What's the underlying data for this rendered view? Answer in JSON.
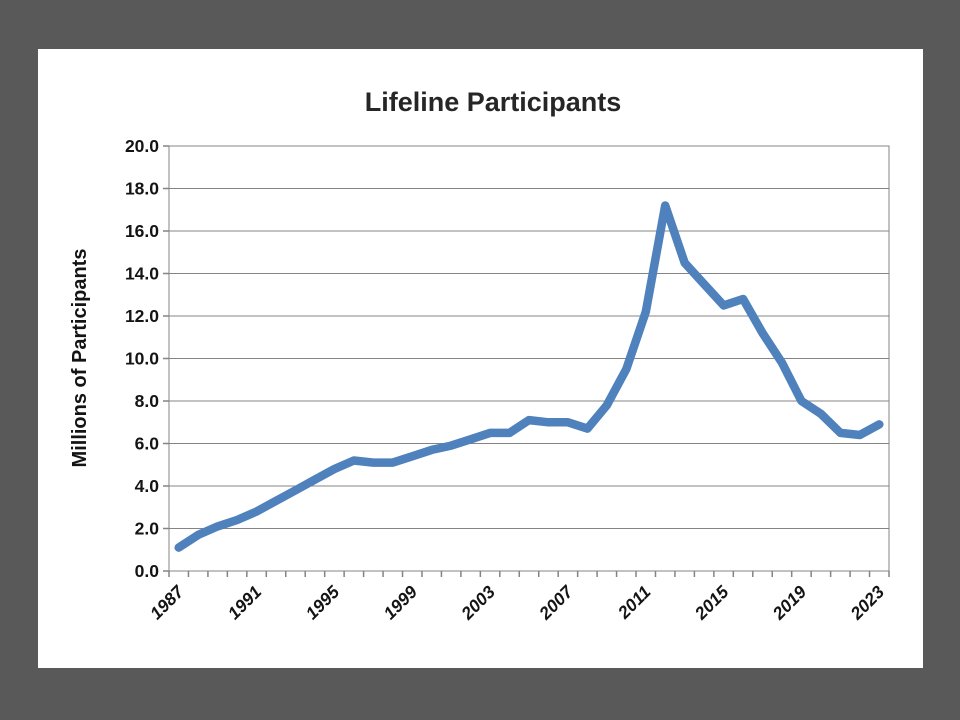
{
  "slide": {
    "background_color": "#595959",
    "panel_color": "#ffffff"
  },
  "chart_data": {
    "type": "line",
    "title": "Lifeline Participants",
    "xlabel": "",
    "ylabel": "Millions of Participants",
    "x": [
      1987,
      1988,
      1989,
      1990,
      1991,
      1992,
      1993,
      1994,
      1995,
      1996,
      1997,
      1998,
      1999,
      2000,
      2001,
      2002,
      2003,
      2004,
      2005,
      2006,
      2007,
      2008,
      2009,
      2010,
      2011,
      2012,
      2013,
      2014,
      2015,
      2016,
      2017,
      2018,
      2019,
      2020,
      2021,
      2022,
      2023
    ],
    "series": [
      {
        "name": "Lifeline Participants",
        "values": [
          1.1,
          1.7,
          2.1,
          2.4,
          2.8,
          3.3,
          3.8,
          4.3,
          4.8,
          5.2,
          5.1,
          5.1,
          5.4,
          5.7,
          5.9,
          6.2,
          6.5,
          6.5,
          7.1,
          7.0,
          7.0,
          6.7,
          7.8,
          9.5,
          12.2,
          17.2,
          14.5,
          13.5,
          12.5,
          12.8,
          11.2,
          9.8,
          8.0,
          7.4,
          6.5,
          6.4,
          6.9
        ]
      }
    ],
    "ylim": [
      0.0,
      20.0
    ],
    "ytick_interval": 2.0,
    "ytick_labels": [
      "0.0",
      "2.0",
      "4.0",
      "6.0",
      "8.0",
      "10.0",
      "12.0",
      "14.0",
      "16.0",
      "18.0",
      "20.0"
    ],
    "xtick_label_interval": 4,
    "xtick_labels": [
      "1987",
      "1991",
      "1995",
      "1999",
      "2003",
      "2007",
      "2011",
      "2015",
      "2019",
      "2023"
    ],
    "grid": true,
    "legend_position": "none",
    "line_color": "#4F81BD",
    "gridline_color": "#848484",
    "axis_color": "#848484",
    "text_color": "#141414",
    "title_color": "#262626"
  }
}
